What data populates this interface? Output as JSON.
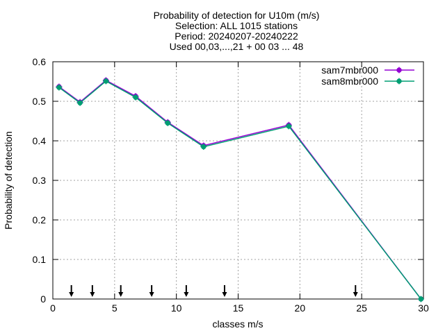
{
  "chart_data": {
    "type": "line",
    "title_lines": [
      "Probability of detection  for U10m (m/s)",
      "Selection: ALL   1015 stations",
      "Period: 20240207-20240222",
      "Used 00,03,...,21 + 00 03 ... 48"
    ],
    "xlabel": "classes m/s",
    "ylabel": "Probability of detection",
    "xlim": [
      0,
      30
    ],
    "ylim": [
      0,
      0.6
    ],
    "xticks": [
      0,
      5,
      10,
      15,
      20,
      25,
      30
    ],
    "yticks": [
      0,
      0.1,
      0.2,
      0.3,
      0.4,
      0.5,
      0.6
    ],
    "grid": true,
    "legend_position": "top-right",
    "series": [
      {
        "name": "sam7mbr000",
        "color": "#9400d3",
        "x": [
          0.5,
          2.2,
          4.3,
          6.7,
          9.3,
          12.2,
          19.1,
          29.8
        ],
        "y": [
          0.537,
          0.498,
          0.553,
          0.513,
          0.447,
          0.388,
          0.44,
          0.0
        ]
      },
      {
        "name": "sam8mbr000",
        "color": "#009e73",
        "x": [
          0.5,
          2.2,
          4.3,
          6.7,
          9.3,
          12.2,
          19.1,
          29.8
        ],
        "y": [
          0.535,
          0.496,
          0.551,
          0.51,
          0.445,
          0.385,
          0.437,
          0.0
        ]
      }
    ],
    "arrow_markers_x": [
      1.5,
      3.2,
      5.5,
      8.0,
      10.8,
      13.9,
      24.5
    ]
  }
}
